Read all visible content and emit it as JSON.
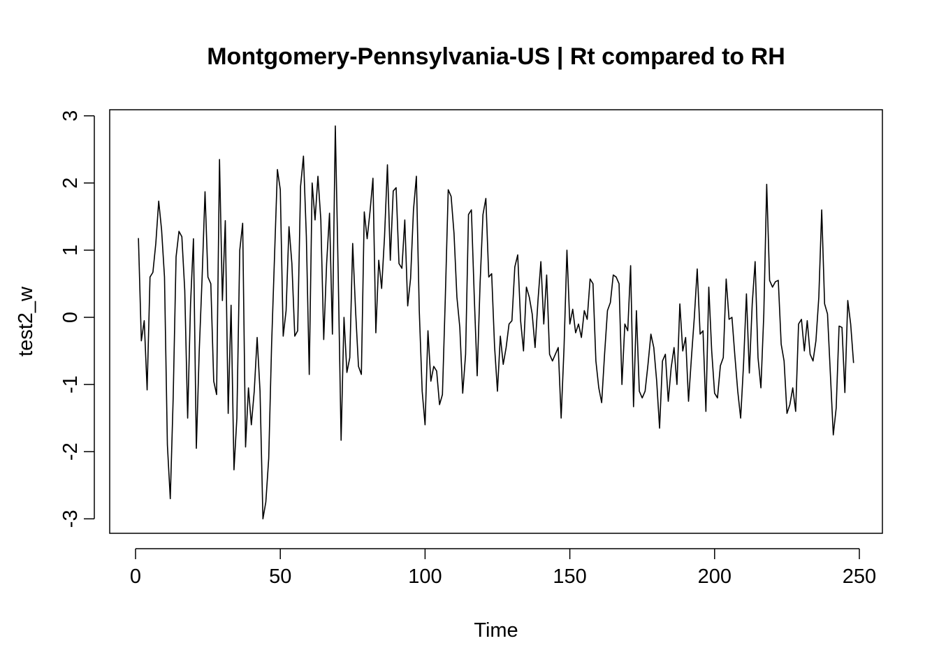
{
  "chart_data": {
    "type": "line",
    "title": "Montgomery-Pennsylvania-US | Rt compared to RH",
    "xlabel": "Time",
    "ylabel": "test2_w",
    "xlim": [
      1,
      248
    ],
    "ylim": [
      -3,
      3
    ],
    "x_ticks": [
      0,
      50,
      100,
      150,
      200,
      250
    ],
    "y_ticks": [
      -3,
      -2,
      -1,
      0,
      1,
      2,
      3
    ],
    "x_tick_labels": [
      "0",
      "50",
      "100",
      "150",
      "200",
      "250"
    ],
    "y_tick_labels": [
      "-3",
      "-2",
      "-1",
      "0",
      "1",
      "2",
      "3"
    ],
    "grid": false,
    "line_color": "#000000",
    "series": [
      {
        "values": [
          1.18,
          -0.35,
          -0.05,
          -1.08,
          0.6,
          0.67,
          1.1,
          1.73,
          1.3,
          0.6,
          -1.9,
          -2.7,
          -1.2,
          0.9,
          1.28,
          1.2,
          0.4,
          -1.5,
          0.2,
          1.17,
          -1.95,
          -0.5,
          0.6,
          1.87,
          0.6,
          0.5,
          -0.95,
          -1.15,
          2.35,
          0.25,
          1.44,
          -1.43,
          0.18,
          -2.27,
          -1.5,
          1.0,
          1.4,
          -1.93,
          -1.05,
          -1.6,
          -1.1,
          -0.3,
          -1.1,
          -3.0,
          -2.75,
          -2.1,
          -0.4,
          0.9,
          2.2,
          1.9,
          -0.28,
          0.1,
          1.35,
          0.8,
          -0.28,
          -0.2,
          1.95,
          2.4,
          1.2,
          -0.85,
          2.0,
          1.45,
          2.1,
          1.45,
          -0.33,
          0.8,
          1.55,
          -0.25,
          2.85,
          0.65,
          -1.83,
          0.0,
          -0.82,
          -0.6,
          1.1,
          0.1,
          -0.73,
          -0.85,
          1.57,
          1.17,
          1.58,
          2.07,
          -0.23,
          0.85,
          0.43,
          1.2,
          2.27,
          0.85,
          1.88,
          1.93,
          0.8,
          0.73,
          1.45,
          0.17,
          0.58,
          1.6,
          2.1,
          0.1,
          -1.1,
          -1.6,
          -0.2,
          -0.95,
          -0.73,
          -0.8,
          -1.3,
          -1.15,
          0.3,
          1.9,
          1.8,
          1.25,
          0.3,
          -0.15,
          -1.13,
          -0.55,
          1.53,
          1.6,
          0.3,
          -0.87,
          0.5,
          1.53,
          1.77,
          0.6,
          0.65,
          -0.43,
          -1.1,
          -0.28,
          -0.7,
          -0.45,
          -0.1,
          -0.05,
          0.75,
          0.93,
          -0.05,
          -0.5,
          0.45,
          0.3,
          0.05,
          -0.45,
          0.25,
          0.83,
          -0.1,
          0.63,
          -0.55,
          -0.65,
          -0.55,
          -0.45,
          -1.5,
          -0.45,
          1.0,
          -0.1,
          0.12,
          -0.23,
          -0.1,
          -0.3,
          0.1,
          -0.03,
          0.57,
          0.5,
          -0.65,
          -1.05,
          -1.27,
          -0.55,
          0.1,
          0.22,
          0.63,
          0.6,
          0.5,
          -1.0,
          -0.1,
          -0.2,
          0.77,
          -1.33,
          0.1,
          -1.1,
          -1.2,
          -1.1,
          -0.7,
          -0.25,
          -0.45,
          -0.95,
          -1.65,
          -0.65,
          -0.55,
          -1.25,
          -0.75,
          -0.45,
          -1.0,
          0.2,
          -0.5,
          -0.3,
          -1.25,
          -0.6,
          0.0,
          0.72,
          -0.25,
          -0.2,
          -1.4,
          0.45,
          -0.5,
          -1.13,
          -1.2,
          -0.72,
          -0.6,
          0.57,
          -0.03,
          0.0,
          -0.57,
          -1.1,
          -1.5,
          -0.7,
          0.35,
          -0.83,
          0.2,
          0.83,
          -0.6,
          -1.05,
          0.05,
          1.98,
          0.55,
          0.45,
          0.53,
          0.55,
          -0.4,
          -0.65,
          -1.43,
          -1.3,
          -1.05,
          -1.4,
          -0.1,
          -0.03,
          -0.5,
          -0.05,
          -0.55,
          -0.65,
          -0.35,
          0.3,
          1.6,
          0.2,
          0.05,
          -0.85,
          -1.75,
          -1.35,
          -0.13,
          -0.15,
          -1.12,
          0.25,
          -0.1,
          -0.68
        ]
      }
    ]
  }
}
